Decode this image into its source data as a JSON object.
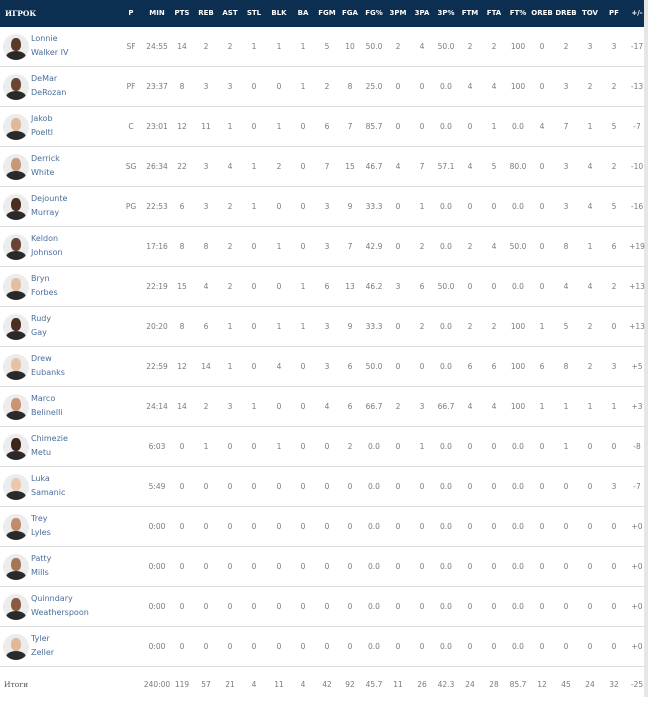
{
  "columns": [
    "P",
    "MIN",
    "PTS",
    "REB",
    "AST",
    "STL",
    "BLK",
    "BA",
    "FGM",
    "FGA",
    "FG%",
    "3PM",
    "3PA",
    "3P%",
    "FTM",
    "FTA",
    "FT%",
    "OREB",
    "DREB",
    "TOV",
    "PF",
    "+/-"
  ],
  "player_header": "ИГРОК",
  "colors": {
    "header_bg": "#0b2e51",
    "name_link": "#4a6d9c",
    "cell_text": "#7a7a7a"
  },
  "players": [
    {
      "first": "Lonnie",
      "last": "Walker IV",
      "skin": "#5a3a28",
      "stats": [
        "SF",
        "24:55",
        "14",
        "2",
        "2",
        "1",
        "1",
        "1",
        "5",
        "10",
        "50.0",
        "2",
        "4",
        "50.0",
        "2",
        "2",
        "100",
        "0",
        "2",
        "3",
        "3",
        "-17"
      ]
    },
    {
      "first": "DeMar",
      "last": "DeRozan",
      "skin": "#6b4630",
      "stats": [
        "PF",
        "23:37",
        "8",
        "3",
        "3",
        "0",
        "0",
        "1",
        "2",
        "8",
        "25.0",
        "0",
        "0",
        "0.0",
        "4",
        "4",
        "100",
        "0",
        "3",
        "2",
        "2",
        "-13"
      ]
    },
    {
      "first": "Jakob",
      "last": "Poeltl",
      "skin": "#e0b89a",
      "stats": [
        "C",
        "23:01",
        "12",
        "11",
        "1",
        "0",
        "1",
        "0",
        "6",
        "7",
        "85.7",
        "0",
        "0",
        "0.0",
        "0",
        "1",
        "0.0",
        "4",
        "7",
        "1",
        "5",
        "-7"
      ]
    },
    {
      "first": "Derrick",
      "last": "White",
      "skin": "#c9987a",
      "stats": [
        "SG",
        "26:34",
        "22",
        "3",
        "4",
        "1",
        "2",
        "0",
        "7",
        "15",
        "46.7",
        "4",
        "7",
        "57.1",
        "4",
        "5",
        "80.0",
        "0",
        "3",
        "4",
        "2",
        "-10"
      ]
    },
    {
      "first": "Dejounte",
      "last": "Murray",
      "skin": "#4a2e20",
      "stats": [
        "PG",
        "22:53",
        "6",
        "3",
        "2",
        "1",
        "0",
        "0",
        "3",
        "9",
        "33.3",
        "0",
        "1",
        "0.0",
        "0",
        "0",
        "0.0",
        "0",
        "3",
        "4",
        "5",
        "-16"
      ]
    },
    {
      "first": "Keldon",
      "last": "Johnson",
      "skin": "#6a4432",
      "stats": [
        "",
        "17:16",
        "8",
        "8",
        "2",
        "0",
        "1",
        "0",
        "3",
        "7",
        "42.9",
        "0",
        "2",
        "0.0",
        "2",
        "4",
        "50.0",
        "0",
        "8",
        "1",
        "6",
        "+19"
      ]
    },
    {
      "first": "Bryn",
      "last": "Forbes",
      "skin": "#e3bea2",
      "stats": [
        "",
        "22:19",
        "15",
        "4",
        "2",
        "0",
        "0",
        "1",
        "6",
        "13",
        "46.2",
        "3",
        "6",
        "50.0",
        "0",
        "0",
        "0.0",
        "0",
        "4",
        "4",
        "2",
        "+13"
      ]
    },
    {
      "first": "Rudy",
      "last": "Gay",
      "skin": "#4e3022",
      "stats": [
        "",
        "20:20",
        "8",
        "6",
        "1",
        "0",
        "1",
        "1",
        "3",
        "9",
        "33.3",
        "0",
        "2",
        "0.0",
        "2",
        "2",
        "100",
        "1",
        "5",
        "2",
        "0",
        "+13"
      ]
    },
    {
      "first": "Drew",
      "last": "Eubanks",
      "skin": "#e6c2a6",
      "stats": [
        "",
        "22:59",
        "12",
        "14",
        "1",
        "0",
        "4",
        "0",
        "3",
        "6",
        "50.0",
        "0",
        "0",
        "0.0",
        "6",
        "6",
        "100",
        "6",
        "8",
        "2",
        "3",
        "+5"
      ]
    },
    {
      "first": "Marco",
      "last": "Belinelli",
      "skin": "#c89474",
      "stats": [
        "",
        "24:14",
        "14",
        "2",
        "3",
        "1",
        "0",
        "0",
        "4",
        "6",
        "66.7",
        "2",
        "3",
        "66.7",
        "4",
        "4",
        "100",
        "1",
        "1",
        "1",
        "1",
        "+3"
      ]
    },
    {
      "first": "Chimezie",
      "last": "Metu",
      "skin": "#3e261a",
      "stats": [
        "",
        "6:03",
        "0",
        "1",
        "0",
        "0",
        "1",
        "0",
        "0",
        "2",
        "0.0",
        "0",
        "1",
        "0.0",
        "0",
        "0",
        "0.0",
        "0",
        "1",
        "0",
        "0",
        "-8"
      ]
    },
    {
      "first": "Luka",
      "last": "Samanic",
      "skin": "#ecc8ae",
      "stats": [
        "",
        "5:49",
        "0",
        "0",
        "0",
        "0",
        "0",
        "0",
        "0",
        "0",
        "0.0",
        "0",
        "0",
        "0.0",
        "0",
        "0",
        "0.0",
        "0",
        "0",
        "0",
        "3",
        "-7"
      ]
    },
    {
      "first": "Trey",
      "last": "Lyles",
      "skin": "#c08c6c",
      "stats": [
        "",
        "0:00",
        "0",
        "0",
        "0",
        "0",
        "0",
        "0",
        "0",
        "0",
        "0.0",
        "0",
        "0",
        "0.0",
        "0",
        "0",
        "0.0",
        "0",
        "0",
        "0",
        "0",
        "+0"
      ]
    },
    {
      "first": "Patty",
      "last": "Mills",
      "skin": "#a87458",
      "stats": [
        "",
        "0:00",
        "0",
        "0",
        "0",
        "0",
        "0",
        "0",
        "0",
        "0",
        "0.0",
        "0",
        "0",
        "0.0",
        "0",
        "0",
        "0.0",
        "0",
        "0",
        "0",
        "0",
        "+0"
      ]
    },
    {
      "first": "Quinndary",
      "last": "Weatherspoon",
      "skin": "#8a5a40",
      "stats": [
        "",
        "0:00",
        "0",
        "0",
        "0",
        "0",
        "0",
        "0",
        "0",
        "0",
        "0.0",
        "0",
        "0",
        "0.0",
        "0",
        "0",
        "0.0",
        "0",
        "0",
        "0",
        "0",
        "+0"
      ]
    },
    {
      "first": "Tyler",
      "last": "Zeller",
      "skin": "#e0b89a",
      "stats": [
        "",
        "0:00",
        "0",
        "0",
        "0",
        "0",
        "0",
        "0",
        "0",
        "0",
        "0.0",
        "0",
        "0",
        "0.0",
        "0",
        "0",
        "0.0",
        "0",
        "0",
        "0",
        "0",
        "+0"
      ]
    }
  ],
  "totals": {
    "label": "Итоги",
    "stats": [
      "",
      "240:00",
      "119",
      "57",
      "21",
      "4",
      "11",
      "4",
      "42",
      "92",
      "45.7",
      "11",
      "26",
      "42.3",
      "24",
      "28",
      "85.7",
      "12",
      "45",
      "24",
      "32",
      "-25"
    ]
  }
}
